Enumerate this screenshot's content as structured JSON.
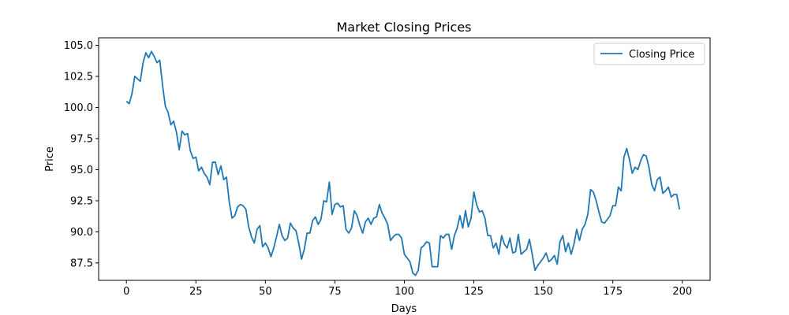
{
  "chart_data": {
    "type": "line",
    "title": "Market Closing Prices",
    "xlabel": "Days",
    "ylabel": "Price",
    "xlim": [
      -10,
      210
    ],
    "ylim": [
      86.1,
      105.6
    ],
    "xticks": [
      0,
      25,
      50,
      75,
      100,
      125,
      150,
      175,
      200
    ],
    "yticks": [
      87.5,
      90.0,
      92.5,
      95.0,
      97.5,
      100.0,
      102.5,
      105.0
    ],
    "grid": false,
    "legend_position": "top-right",
    "series": [
      {
        "name": "Closing Price",
        "color": "#1f77b4",
        "x": [
          0,
          1,
          2,
          3,
          4,
          5,
          6,
          7,
          8,
          9,
          10,
          11,
          12,
          13,
          14,
          15,
          16,
          17,
          18,
          19,
          20,
          21,
          22,
          23,
          24,
          25,
          26,
          27,
          28,
          29,
          30,
          31,
          32,
          33,
          34,
          35,
          36,
          37,
          38,
          39,
          40,
          41,
          42,
          43,
          44,
          45,
          46,
          47,
          48,
          49,
          50,
          51,
          52,
          53,
          54,
          55,
          56,
          57,
          58,
          59,
          60,
          61,
          62,
          63,
          64,
          65,
          66,
          67,
          68,
          69,
          70,
          71,
          72,
          73,
          74,
          75,
          76,
          77,
          78,
          79,
          80,
          81,
          82,
          83,
          84,
          85,
          86,
          87,
          88,
          89,
          90,
          91,
          92,
          93,
          94,
          95,
          96,
          97,
          98,
          99,
          100,
          101,
          102,
          103,
          104,
          105,
          106,
          107,
          108,
          109,
          110,
          111,
          112,
          113,
          114,
          115,
          116,
          117,
          118,
          119,
          120,
          121,
          122,
          123,
          124,
          125,
          126,
          127,
          128,
          129,
          130,
          131,
          132,
          133,
          134,
          135,
          136,
          137,
          138,
          139,
          140,
          141,
          142,
          143,
          144,
          145,
          146,
          147,
          148,
          149,
          150,
          151,
          152,
          153,
          154,
          155,
          156,
          157,
          158,
          159,
          160,
          161,
          162,
          163,
          164,
          165,
          166,
          167,
          168,
          169,
          170,
          171,
          172,
          173,
          174,
          175,
          176,
          177,
          178,
          179,
          180,
          181,
          182,
          183,
          184,
          185,
          186,
          187,
          188,
          189,
          190,
          191,
          192,
          193,
          194,
          195,
          196,
          197,
          198,
          199
        ],
        "values": [
          100.5,
          100.3,
          101.1,
          102.5,
          102.3,
          102.1,
          103.6,
          104.4,
          104.0,
          104.5,
          104.1,
          103.6,
          103.8,
          101.8,
          100.1,
          99.6,
          98.6,
          98.9,
          98.0,
          96.6,
          98.1,
          97.8,
          97.9,
          96.5,
          95.9,
          96.0,
          94.9,
          95.2,
          94.7,
          94.4,
          93.8,
          95.6,
          95.6,
          94.6,
          95.3,
          94.2,
          94.4,
          92.4,
          91.1,
          91.3,
          92.0,
          92.2,
          92.1,
          91.8,
          90.4,
          89.6,
          89.1,
          90.2,
          90.5,
          88.8,
          89.1,
          88.7,
          88.0,
          88.7,
          89.6,
          90.6,
          89.7,
          89.3,
          89.5,
          90.7,
          90.3,
          90.1,
          89.1,
          87.8,
          88.6,
          89.9,
          89.9,
          90.9,
          91.2,
          90.6,
          91.0,
          92.5,
          92.4,
          94.0,
          91.4,
          92.2,
          92.3,
          92.0,
          92.1,
          90.2,
          89.9,
          90.3,
          91.7,
          91.3,
          90.5,
          89.9,
          90.8,
          91.1,
          90.6,
          91.1,
          91.2,
          92.2,
          91.5,
          91.1,
          90.6,
          89.3,
          89.6,
          89.8,
          89.8,
          89.5,
          88.2,
          87.9,
          87.6,
          86.7,
          86.5,
          86.9,
          88.7,
          88.9,
          89.2,
          89.1,
          87.2,
          87.2,
          87.2,
          89.7,
          89.5,
          89.8,
          89.8,
          88.6,
          89.7,
          90.3,
          91.3,
          90.3,
          91.7,
          90.4,
          91.1,
          93.2,
          92.2,
          91.6,
          91.7,
          91.1,
          89.7,
          89.7,
          88.7,
          89.1,
          88.2,
          89.7,
          89.0,
          88.7,
          89.5,
          88.3,
          88.4,
          89.8,
          88.2,
          88.4,
          88.6,
          89.4,
          88.2,
          86.9,
          87.3,
          87.6,
          87.9,
          88.3,
          87.6,
          87.8,
          88.1,
          87.4,
          89.2,
          89.7,
          88.4,
          89.1,
          88.2,
          89.0,
          90.2,
          89.3,
          90.2,
          90.6,
          91.4,
          93.4,
          93.2,
          92.5,
          91.6,
          90.8,
          90.7,
          91.0,
          91.3,
          92.1,
          92.1,
          93.6,
          93.3,
          96.0,
          96.7,
          95.8,
          94.7,
          95.2,
          95.0,
          95.7,
          96.2,
          96.1,
          95.2,
          93.8,
          93.3,
          94.2,
          94.4,
          93.1,
          93.3,
          93.6,
          92.8,
          93.0,
          93.0,
          91.8
        ]
      }
    ]
  }
}
